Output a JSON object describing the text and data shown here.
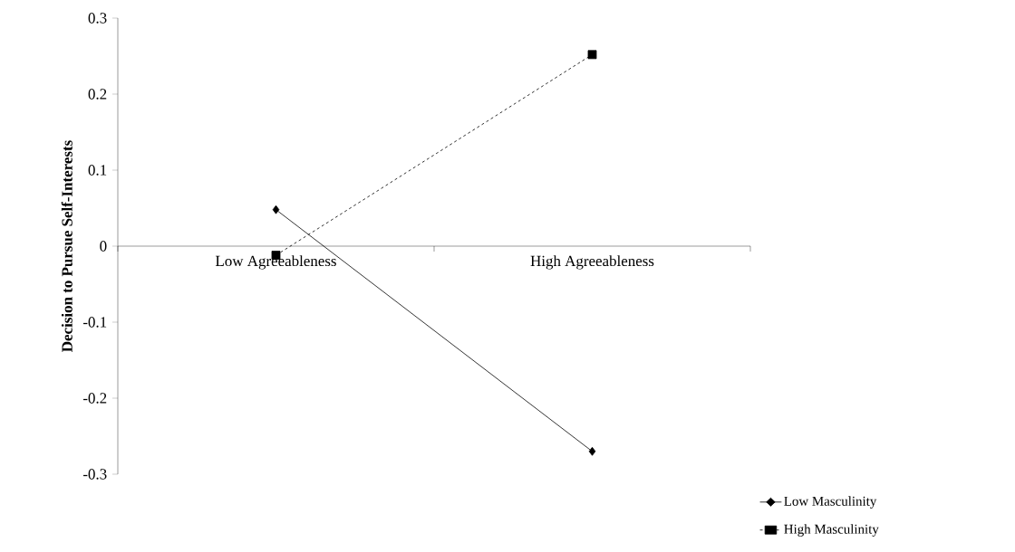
{
  "chart_data": {
    "type": "line",
    "ylabel": "Decision to Pursue Self-Interests",
    "categories": [
      "Low Agreeableness",
      "High Agreeableness"
    ],
    "series": [
      {
        "name": "Low Masculinity",
        "color": "#000000",
        "values": [
          0.048,
          -0.27
        ],
        "marker": "diamond",
        "line_style": "solid"
      },
      {
        "name": "High Masculinity",
        "color": "#000000",
        "values": [
          -0.012,
          0.252
        ],
        "marker": "square",
        "line_style": "dashed"
      }
    ],
    "ylim": [
      -0.3,
      0.3
    ],
    "yticks": [
      -0.3,
      -0.2,
      -0.1,
      0,
      0.1,
      0.2,
      0.3
    ],
    "grid": false,
    "legend": "bottom right"
  }
}
